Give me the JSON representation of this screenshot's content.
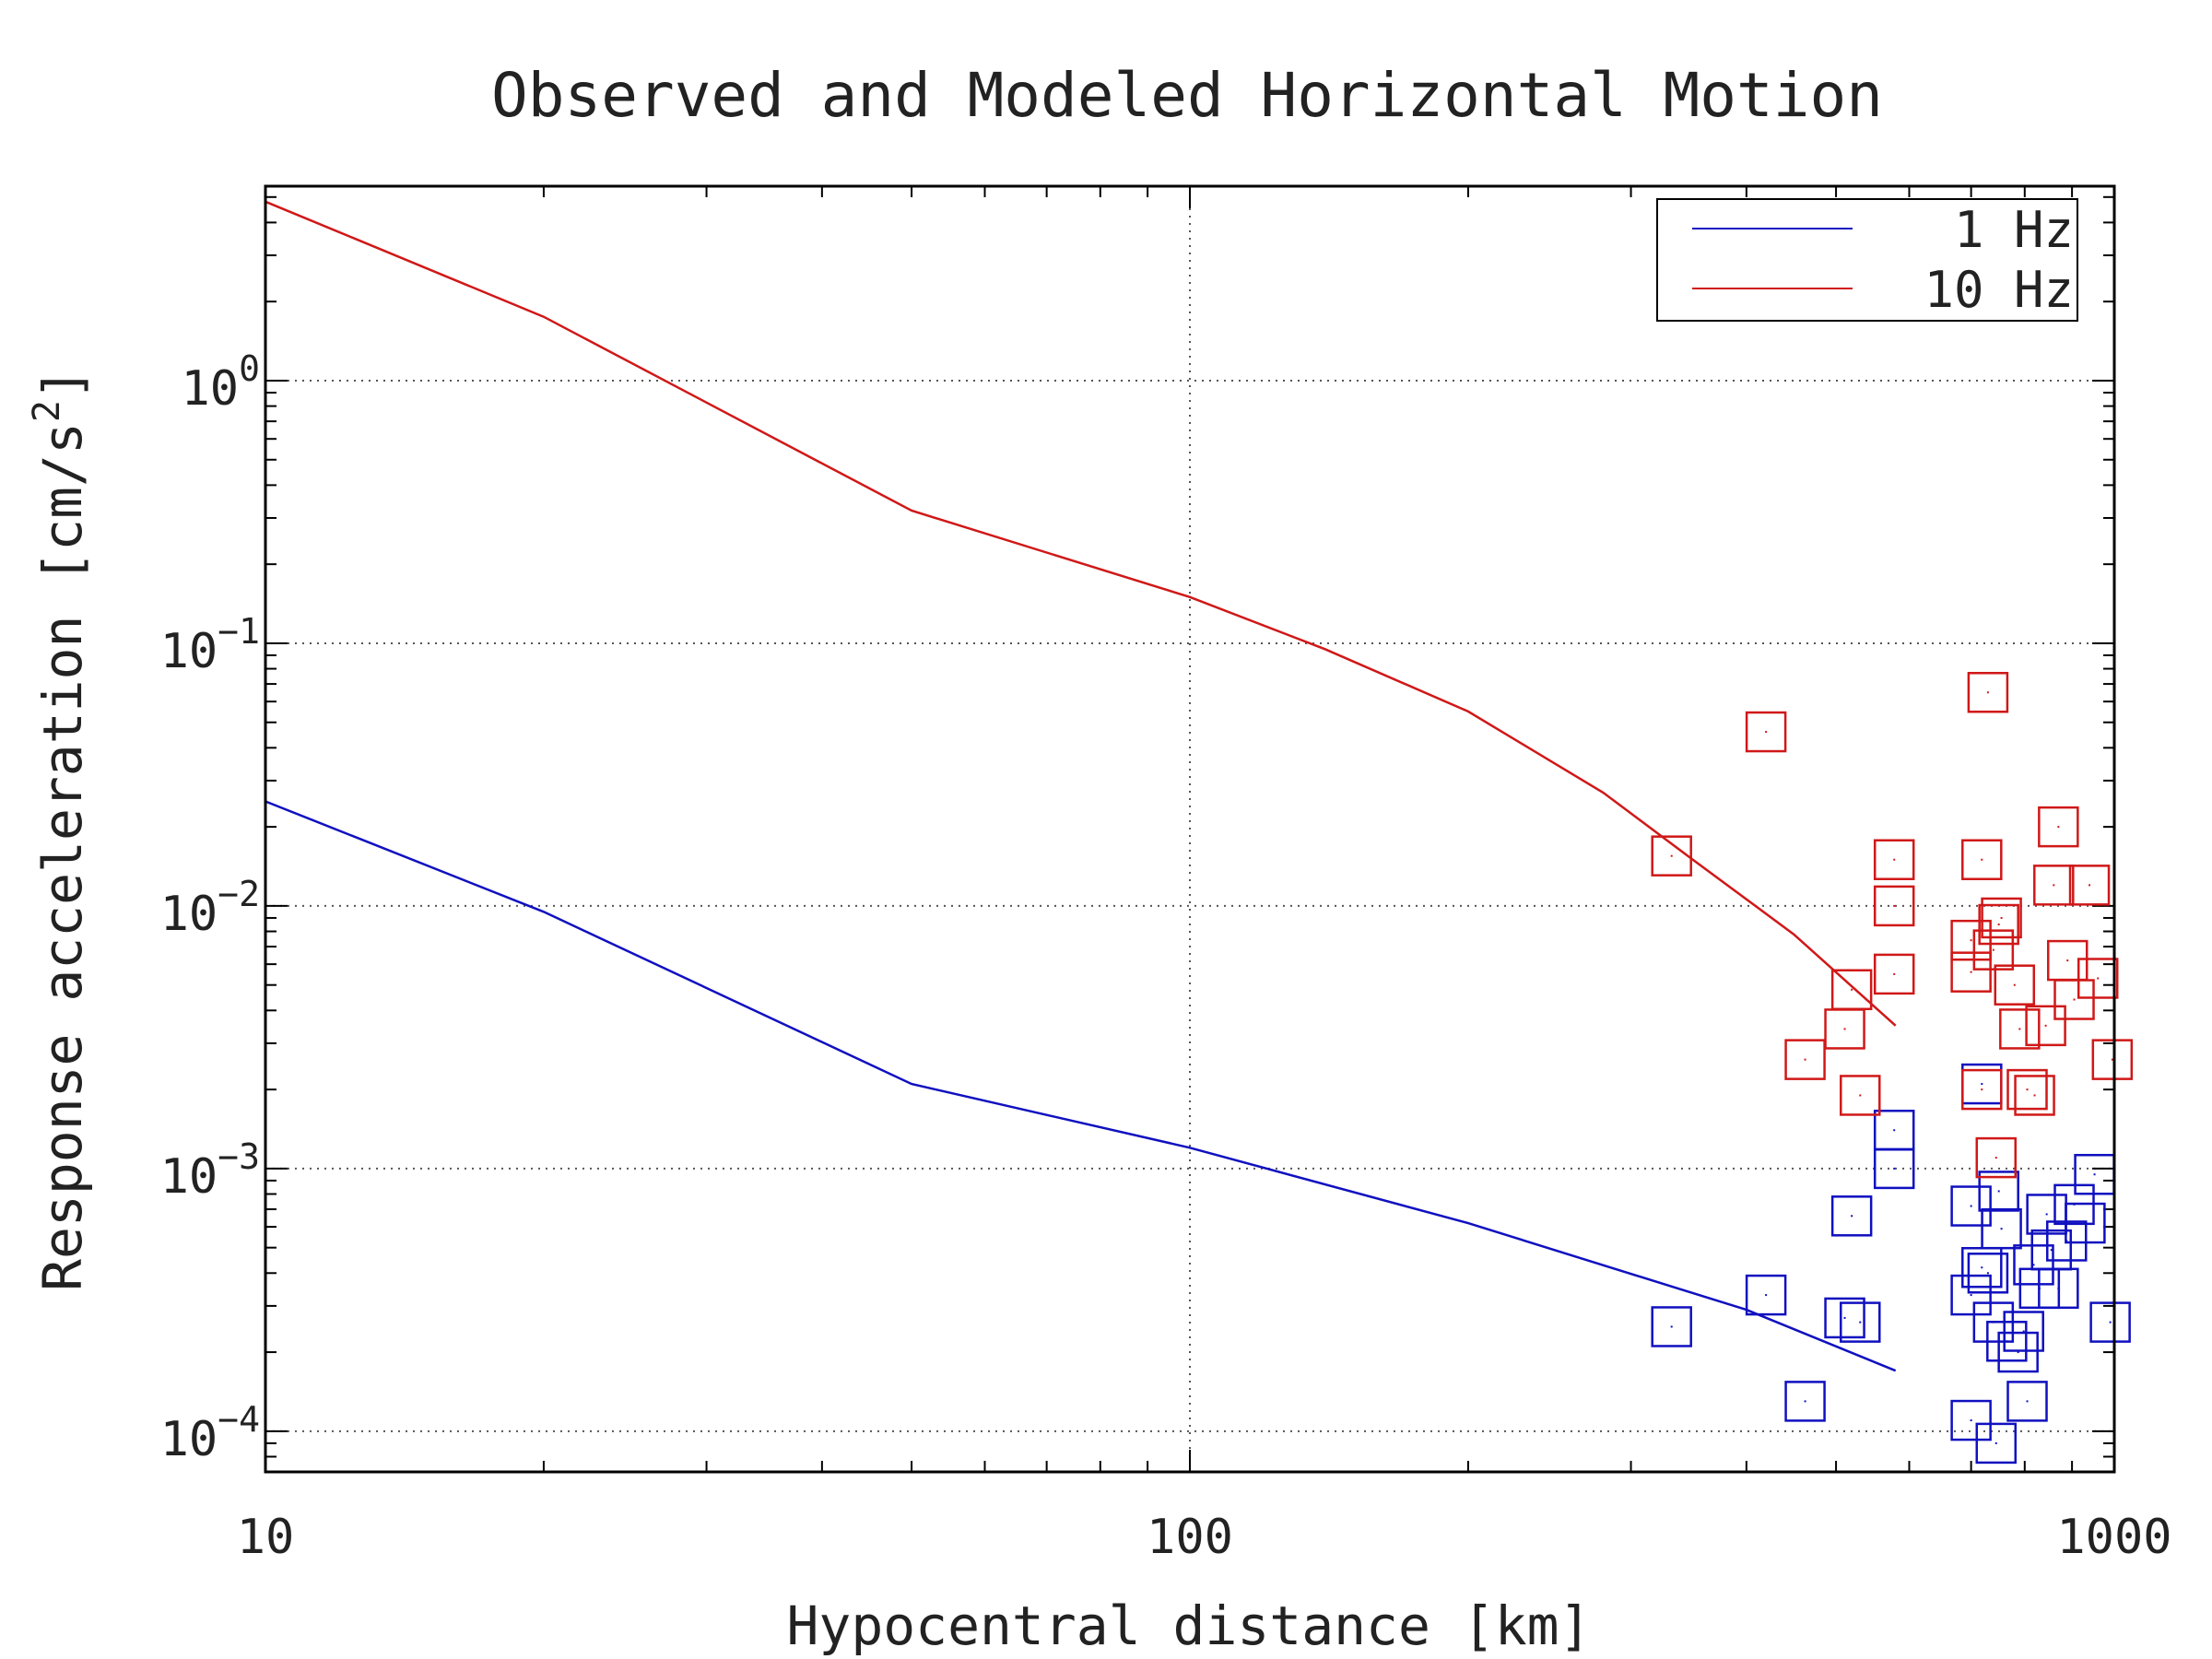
{
  "chart_data": {
    "type": "scatter",
    "title": "Observed and Modeled Horizontal Motion",
    "xlabel": "Hypocentral distance [km]",
    "ylabel_main": "Response acceleration [cm/s",
    "ylabel_sup": "2",
    "ylabel_tail": "]",
    "xscale": "log",
    "yscale": "log",
    "xlim": [
      10,
      1000
    ],
    "ylim": [
      7e-05,
      5.5
    ],
    "x_ticks": [
      {
        "value": 10,
        "label": "10"
      },
      {
        "value": 100,
        "label": "100"
      },
      {
        "value": 1000,
        "label": "1000"
      }
    ],
    "y_ticks": [
      {
        "value": 1,
        "base": "10",
        "exp": "0"
      },
      {
        "value": 0.1,
        "base": "10",
        "exp": "−1"
      },
      {
        "value": 0.01,
        "base": "10",
        "exp": "−2"
      },
      {
        "value": 0.001,
        "base": "10",
        "exp": "−3"
      },
      {
        "value": 0.0001,
        "base": "10",
        "exp": "−4"
      }
    ],
    "grid": true,
    "legend_position": "top-right",
    "series": [
      {
        "name": "1 Hz",
        "color": "#1010c0",
        "model": [
          [
            10,
            0.025
          ],
          [
            20,
            0.0095
          ],
          [
            50,
            0.0021
          ],
          [
            100,
            0.0012
          ],
          [
            200,
            0.00062
          ],
          [
            400,
            0.00029
          ],
          [
            580,
            0.00017
          ]
        ],
        "observed": [
          [
            332,
            0.00025
          ],
          [
            420,
            0.00033
          ],
          [
            463,
            0.00013
          ],
          [
            511,
            0.00027
          ],
          [
            520,
            0.00066
          ],
          [
            531,
            0.00026
          ],
          [
            578,
            0.0014
          ],
          [
            578,
            0.001
          ],
          [
            700,
            0.00072
          ],
          [
            700,
            0.00033
          ],
          [
            700,
            0.00011
          ],
          [
            719,
            0.0021
          ],
          [
            719,
            0.00042
          ],
          [
            730,
            0.0004
          ],
          [
            740,
            0.00026
          ],
          [
            745,
            9e-05
          ],
          [
            750,
            0.00082
          ],
          [
            755,
            0.00059
          ],
          [
            765,
            0.00022
          ],
          [
            787,
            0.0002
          ],
          [
            798,
            0.00024
          ],
          [
            805,
            0.00013
          ],
          [
            818,
            0.00043
          ],
          [
            830,
            0.00035
          ],
          [
            845,
            0.00067
          ],
          [
            855,
            0.00049
          ],
          [
            870,
            0.00035
          ],
          [
            888,
            0.00053
          ],
          [
            905,
            0.00073
          ],
          [
            930,
            0.00062
          ],
          [
            952,
            0.00095
          ],
          [
            990,
            0.00026
          ]
        ]
      },
      {
        "name": "10 Hz",
        "color": "#d01818",
        "model": [
          [
            10,
            4.8
          ],
          [
            20,
            1.75
          ],
          [
            50,
            0.32
          ],
          [
            100,
            0.15
          ],
          [
            140,
            0.095
          ],
          [
            200,
            0.055
          ],
          [
            280,
            0.027
          ],
          [
            350,
            0.015
          ],
          [
            450,
            0.0078
          ],
          [
            580,
            0.0035
          ]
        ],
        "observed": [
          [
            332,
            0.0155
          ],
          [
            420,
            0.046
          ],
          [
            463,
            0.0026
          ],
          [
            511,
            0.0034
          ],
          [
            520,
            0.0048
          ],
          [
            531,
            0.0019
          ],
          [
            578,
            0.01
          ],
          [
            578,
            0.015
          ],
          [
            578,
            0.0055
          ],
          [
            700,
            0.0056
          ],
          [
            700,
            0.0074
          ],
          [
            719,
            0.015
          ],
          [
            719,
            0.002
          ],
          [
            730,
            0.065
          ],
          [
            740,
            0.0068
          ],
          [
            745,
            0.0011
          ],
          [
            750,
            0.0085
          ],
          [
            755,
            0.009
          ],
          [
            780,
            0.005
          ],
          [
            790,
            0.0034
          ],
          [
            805,
            0.002
          ],
          [
            820,
            0.0019
          ],
          [
            843,
            0.0035
          ],
          [
            860,
            0.012
          ],
          [
            870,
            0.02
          ],
          [
            890,
            0.0062
          ],
          [
            905,
            0.0044
          ],
          [
            940,
            0.012
          ],
          [
            960,
            0.0053
          ],
          [
            995,
            0.0026
          ]
        ]
      }
    ]
  }
}
